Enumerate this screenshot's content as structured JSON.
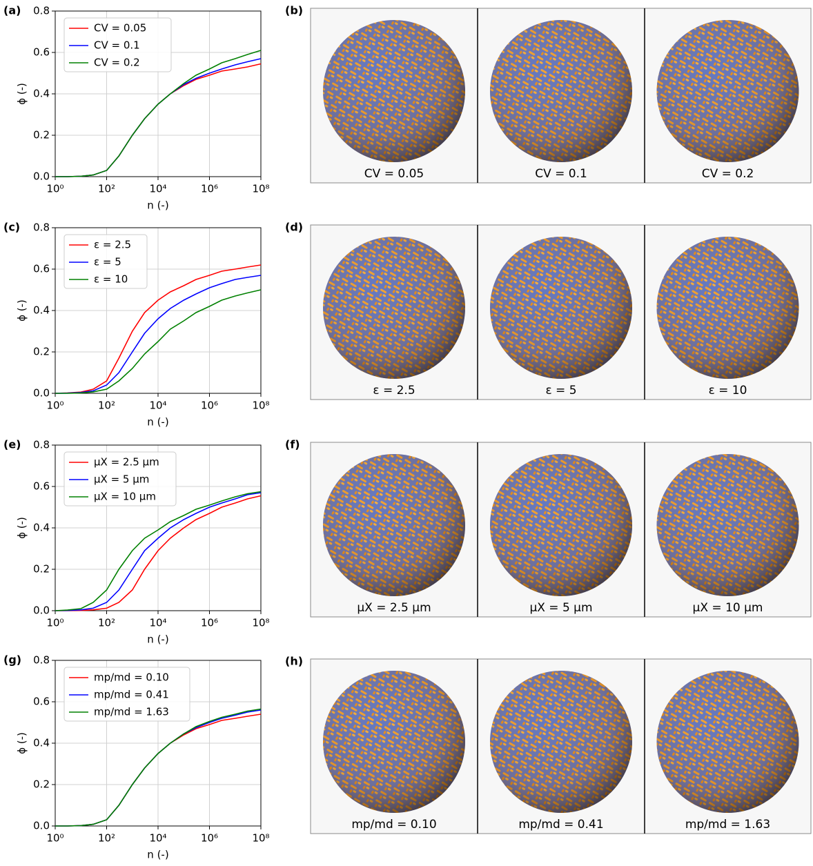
{
  "chart_data": [
    {
      "type": "line",
      "panel_label": "(a)",
      "xlabel": "n (-)",
      "ylabel": "ϕ (-)",
      "xscale": "log",
      "grid": true,
      "legend": "upper left",
      "xlim": [
        1,
        100000000
      ],
      "ylim": [
        0,
        0.8
      ],
      "xticks": [
        {
          "value": 1,
          "label": "10⁰"
        },
        {
          "value": 100,
          "label": "10²"
        },
        {
          "value": 10000,
          "label": "10⁴"
        },
        {
          "value": 1000000,
          "label": "10⁶"
        },
        {
          "value": 100000000,
          "label": "10⁸"
        }
      ],
      "yticks": [
        {
          "value": 0,
          "label": "0.0"
        },
        0.2,
        0.4,
        0.6,
        0.8
      ],
      "x": [
        1,
        3,
        10,
        30,
        100,
        300,
        1000,
        3000,
        10000,
        30000,
        100000,
        300000,
        1000000,
        3000000,
        10000000,
        30000000,
        100000000
      ],
      "series": [
        {
          "name": "CV = 0.05",
          "color": "#ff0000",
          "values": [
            0,
            0,
            0.002,
            0.008,
            0.03,
            0.1,
            0.2,
            0.28,
            0.35,
            0.4,
            0.44,
            0.47,
            0.49,
            0.51,
            0.52,
            0.53,
            0.545
          ]
        },
        {
          "name": "CV = 0.1",
          "color": "#0000ff",
          "values": [
            0,
            0,
            0.002,
            0.008,
            0.03,
            0.1,
            0.2,
            0.28,
            0.35,
            0.4,
            0.445,
            0.475,
            0.5,
            0.52,
            0.54,
            0.555,
            0.57
          ]
        },
        {
          "name": "CV = 0.2",
          "color": "#008000",
          "values": [
            0,
            0,
            0.002,
            0.008,
            0.03,
            0.1,
            0.2,
            0.28,
            0.35,
            0.4,
            0.45,
            0.49,
            0.52,
            0.55,
            0.57,
            0.59,
            0.61
          ]
        }
      ]
    },
    {
      "type": "line",
      "panel_label": "(c)",
      "xlabel": "n (-)",
      "ylabel": "ϕ (-)",
      "xscale": "log",
      "grid": true,
      "legend": "upper left",
      "xlim": [
        1,
        100000000
      ],
      "ylim": [
        0,
        0.8
      ],
      "xticks": [
        {
          "value": 1,
          "label": "10⁰"
        },
        {
          "value": 100,
          "label": "10²"
        },
        {
          "value": 10000,
          "label": "10⁴"
        },
        {
          "value": 1000000,
          "label": "10⁶"
        },
        {
          "value": 100000000,
          "label": "10⁸"
        }
      ],
      "yticks": [
        {
          "value": 0,
          "label": "0.0"
        },
        0.2,
        0.4,
        0.6,
        0.8
      ],
      "x": [
        1,
        3,
        10,
        30,
        100,
        300,
        1000,
        3000,
        10000,
        30000,
        100000,
        300000,
        1000000,
        3000000,
        10000000,
        30000000,
        100000000
      ],
      "series": [
        {
          "name": "ε = 2.5",
          "color": "#ff0000",
          "values": [
            0,
            0.002,
            0.006,
            0.02,
            0.06,
            0.17,
            0.3,
            0.39,
            0.45,
            0.49,
            0.52,
            0.55,
            0.57,
            0.59,
            0.6,
            0.61,
            0.62
          ]
        },
        {
          "name": "ε = 5",
          "color": "#0000ff",
          "values": [
            0,
            0.001,
            0.004,
            0.012,
            0.04,
            0.1,
            0.2,
            0.29,
            0.36,
            0.41,
            0.45,
            0.48,
            0.51,
            0.53,
            0.55,
            0.56,
            0.57
          ]
        },
        {
          "name": "ε = 10",
          "color": "#008000",
          "values": [
            0,
            0,
            0.002,
            0.007,
            0.02,
            0.06,
            0.12,
            0.19,
            0.25,
            0.31,
            0.35,
            0.39,
            0.42,
            0.45,
            0.47,
            0.485,
            0.5
          ]
        }
      ]
    },
    {
      "type": "line",
      "panel_label": "(e)",
      "xlabel": "n (-)",
      "ylabel": "ϕ (-)",
      "xscale": "log",
      "grid": true,
      "legend": "upper left",
      "xlim": [
        1,
        100000000
      ],
      "ylim": [
        0,
        0.8
      ],
      "xticks": [
        {
          "value": 1,
          "label": "10⁰"
        },
        {
          "value": 100,
          "label": "10²"
        },
        {
          "value": 10000,
          "label": "10⁴"
        },
        {
          "value": 1000000,
          "label": "10⁶"
        },
        {
          "value": 100000000,
          "label": "10⁸"
        }
      ],
      "yticks": [
        {
          "value": 0,
          "label": "0.0"
        },
        0.2,
        0.4,
        0.6,
        0.8
      ],
      "x": [
        1,
        3,
        10,
        30,
        100,
        300,
        1000,
        3000,
        10000,
        30000,
        100000,
        300000,
        1000000,
        3000000,
        10000000,
        30000000,
        100000000
      ],
      "series": [
        {
          "name": "μX = 2.5 μm",
          "color": "#ff0000",
          "values": [
            0,
            0,
            0.001,
            0.004,
            0.012,
            0.04,
            0.1,
            0.2,
            0.29,
            0.35,
            0.4,
            0.44,
            0.47,
            0.5,
            0.52,
            0.54,
            0.555
          ]
        },
        {
          "name": "μX = 5 μm",
          "color": "#0000ff",
          "values": [
            0,
            0.001,
            0.004,
            0.012,
            0.04,
            0.1,
            0.2,
            0.29,
            0.35,
            0.4,
            0.44,
            0.47,
            0.5,
            0.52,
            0.54,
            0.56,
            0.57
          ]
        },
        {
          "name": "μX = 10 μm",
          "color": "#008000",
          "values": [
            0,
            0.003,
            0.01,
            0.04,
            0.1,
            0.2,
            0.29,
            0.35,
            0.39,
            0.43,
            0.46,
            0.49,
            0.51,
            0.53,
            0.55,
            0.565,
            0.575
          ]
        }
      ]
    },
    {
      "type": "line",
      "panel_label": "(g)",
      "xlabel": "n (-)",
      "ylabel": "ϕ (-)",
      "xscale": "log",
      "grid": true,
      "legend": "upper left",
      "xlim": [
        1,
        100000000
      ],
      "ylim": [
        0,
        0.8
      ],
      "xticks": [
        {
          "value": 1,
          "label": "10⁰"
        },
        {
          "value": 100,
          "label": "10²"
        },
        {
          "value": 10000,
          "label": "10⁴"
        },
        {
          "value": 1000000,
          "label": "10⁶"
        },
        {
          "value": 100000000,
          "label": "10⁸"
        }
      ],
      "yticks": [
        {
          "value": 0,
          "label": "0.0"
        },
        0.2,
        0.4,
        0.6,
        0.8
      ],
      "x": [
        1,
        3,
        10,
        30,
        100,
        300,
        1000,
        3000,
        10000,
        30000,
        100000,
        300000,
        1000000,
        3000000,
        10000000,
        30000000,
        100000000
      ],
      "series": [
        {
          "name": "mp/md = 0.10",
          "color": "#ff0000",
          "values": [
            0,
            0,
            0.002,
            0.008,
            0.03,
            0.1,
            0.2,
            0.28,
            0.35,
            0.4,
            0.44,
            0.47,
            0.49,
            0.51,
            0.52,
            0.53,
            0.54
          ]
        },
        {
          "name": "mp/md = 0.41",
          "color": "#0000ff",
          "values": [
            0,
            0,
            0.002,
            0.008,
            0.03,
            0.1,
            0.2,
            0.28,
            0.35,
            0.4,
            0.445,
            0.475,
            0.5,
            0.52,
            0.535,
            0.55,
            0.56
          ]
        },
        {
          "name": "mp/md = 1.63",
          "color": "#008000",
          "values": [
            0,
            0,
            0.002,
            0.008,
            0.03,
            0.1,
            0.2,
            0.28,
            0.35,
            0.4,
            0.445,
            0.48,
            0.505,
            0.525,
            0.54,
            0.555,
            0.565
          ]
        }
      ]
    }
  ],
  "image_panels": [
    {
      "label": "(b)",
      "captions": [
        "CV = 0.05",
        "CV = 0.1",
        "CV = 0.2"
      ]
    },
    {
      "label": "(d)",
      "captions": [
        "ε = 2.5",
        "ε = 5",
        "ε = 10"
      ]
    },
    {
      "label": "(f)",
      "captions": [
        "μX = 2.5 μm",
        "μX = 5 μm",
        "μX = 10 μm"
      ]
    },
    {
      "label": "(h)",
      "captions": [
        "mp/md = 0.10",
        "mp/md = 0.41",
        "mp/md = 1.63"
      ]
    }
  ]
}
